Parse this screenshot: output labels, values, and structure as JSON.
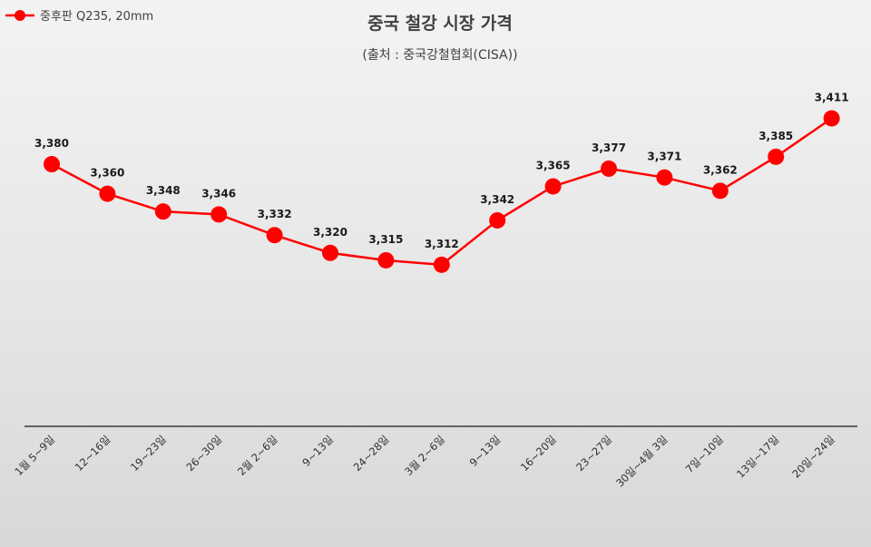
{
  "chart_data": {
    "type": "line",
    "title": "중국 철강 시장 가격",
    "subtitle": "(출처 : 중국강철협회(CISA))",
    "categories": [
      "1월 5~9일",
      "12~16일",
      "19~23일",
      "26~30일",
      "2월 2~6일",
      "9~13일",
      "24~28일",
      "3월 2~6일",
      "9~13일",
      "16~20일",
      "23~27일",
      "30일~4월 3일",
      "7일~10일",
      "13일~17일",
      "20일~24일"
    ],
    "series": [
      {
        "name": "중후판 Q235, 20mm",
        "values": [
          3380,
          3360,
          3348,
          3346,
          3332,
          3320,
          3315,
          3312,
          3342,
          3365,
          3377,
          3371,
          3362,
          3385,
          3411
        ],
        "labels": [
          "3,380",
          "3,360",
          "3,348",
          "3,346",
          "3,332",
          "3,320",
          "3,315",
          "3,312",
          "3,342",
          "3,365",
          "3,377",
          "3,371",
          "3,362",
          "3,385",
          "3,411"
        ],
        "color": "#ff0000"
      }
    ],
    "ylim": [
      3100,
      3500
    ],
    "grid": false,
    "legend": "top-left"
  }
}
